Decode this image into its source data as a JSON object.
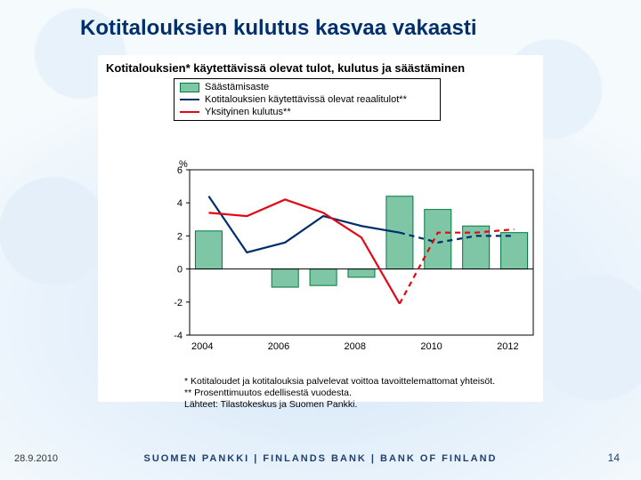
{
  "title": "Kotitalouksien kulutus kasvaa vakaasti",
  "chart": {
    "type": "combo-bar-line",
    "subtitle": "Kotitalouksien* käytettävissä olevat tulot, kulutus ja säästäminen",
    "y_unit": "%",
    "ylim": [
      -4,
      6
    ],
    "ytick_step": 2,
    "yticks": [
      -4,
      -2,
      0,
      2,
      4,
      6
    ],
    "xticks_shown": [
      "2004",
      "2006",
      "2008",
      "2010",
      "2012"
    ],
    "years": [
      2004,
      2005,
      2006,
      2007,
      2008,
      2009,
      2010,
      2011,
      2012
    ],
    "background_color": "#ffffff",
    "axis_color": "#000000",
    "grid": false,
    "bar_width": 0.7,
    "legend": {
      "border_color": "#000000",
      "bar_label": "Säästämisaste",
      "line_real_label": "Kotitalouksien käytettävissä olevat reaalitulot**",
      "line_cons_label": "Yksityinen kulutus**"
    },
    "series": {
      "savings_rate": {
        "kind": "bar",
        "color_fill": "#7ec6a5",
        "color_border": "#007a3d",
        "values": [
          2.3,
          0.0,
          -1.1,
          -1.0,
          -0.5,
          4.4,
          3.6,
          2.6,
          2.2
        ]
      },
      "real_income": {
        "kind": "line",
        "color": "#002f6c",
        "width": 2.2,
        "dash_after_index": 5,
        "values": [
          4.4,
          1.0,
          1.6,
          3.2,
          2.6,
          2.2,
          1.6,
          2.0,
          2.0
        ]
      },
      "private_consumption": {
        "kind": "line",
        "color": "#e30613",
        "width": 2.2,
        "dash_after_index": 5,
        "values": [
          3.4,
          3.2,
          4.2,
          3.4,
          1.9,
          -2.1,
          2.2,
          2.2,
          2.4
        ]
      }
    },
    "title_fontsize": 13,
    "label_fontsize": 11
  },
  "footnotes": {
    "l1": "* Kotitaloudet ja kotitalouksia palvelevat voittoa tavoittelemattomat yhteisöt.",
    "l2": "** Prosenttimuutos edellisestä vuodesta.",
    "l3": "Lähteet: Tilastokeskus ja Suomen Pankki."
  },
  "footer": "SUOMEN PANKKI | FINLANDS BANK | BANK OF FINLAND",
  "date": "28.9.2010",
  "page": "14"
}
